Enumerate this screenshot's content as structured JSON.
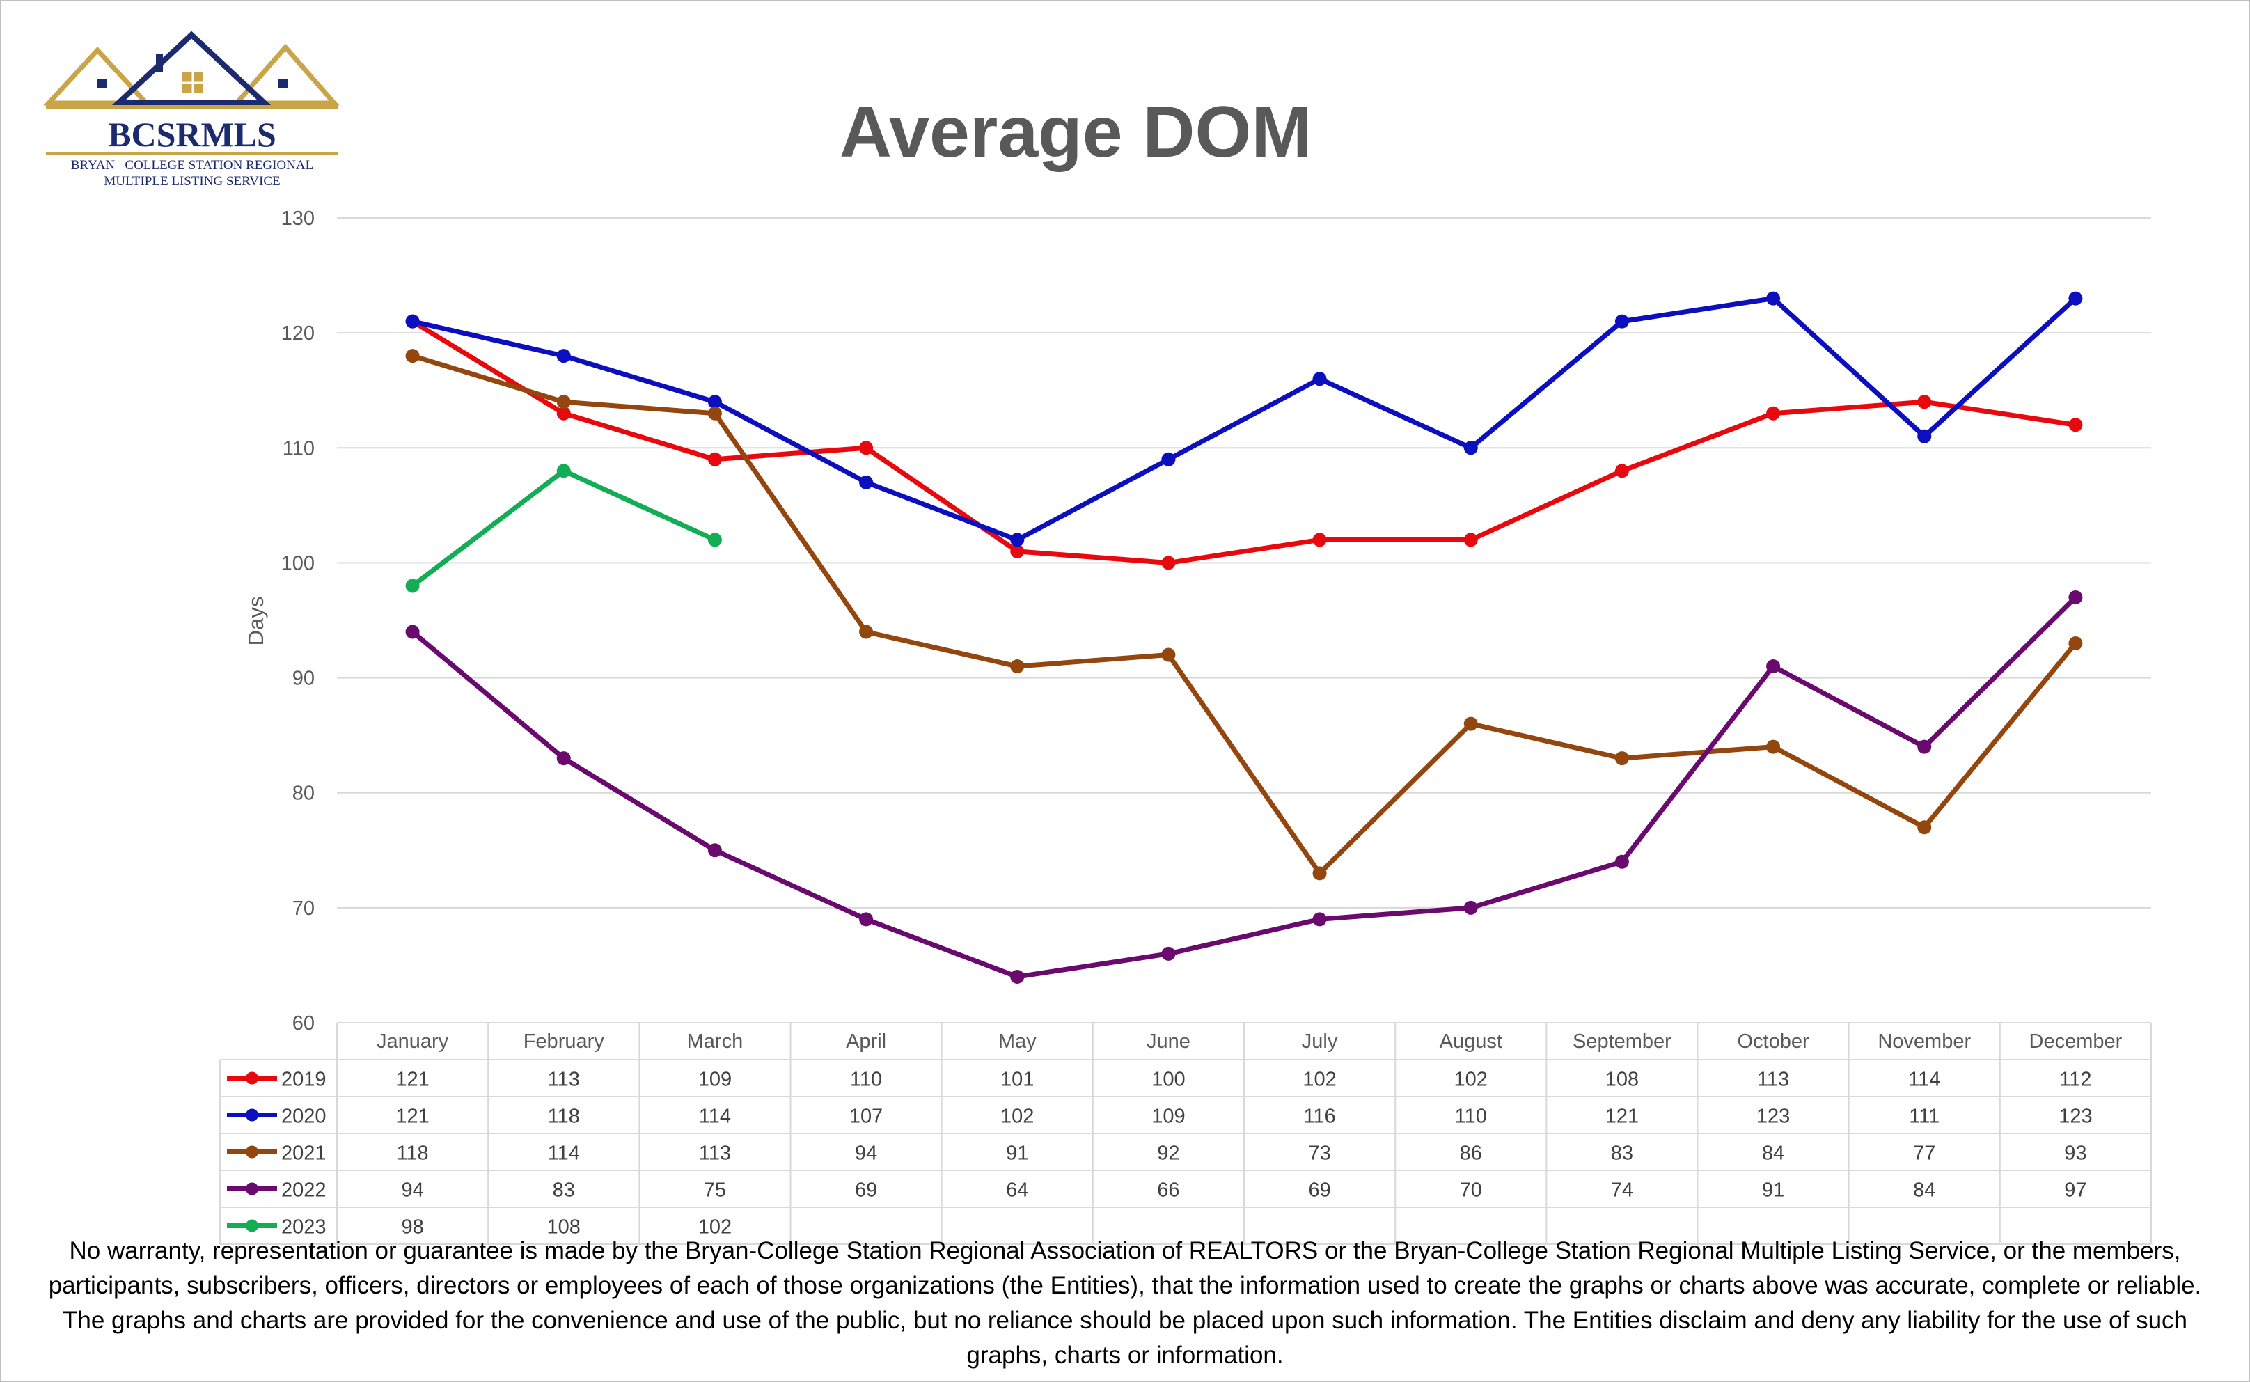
{
  "logo": {
    "name": "BCSRMLS",
    "line1": "BRYAN– COLLEGE STATION REGIONAL",
    "line2": "MULTIPLE LISTING SERVICE"
  },
  "chart_data": {
    "type": "line",
    "title": "Average DOM",
    "ylabel": "Days",
    "xlabel": "",
    "ylim": [
      60,
      130
    ],
    "yticks": [
      60,
      70,
      80,
      90,
      100,
      110,
      120,
      130
    ],
    "grid": true,
    "legend": "data-table",
    "categories": [
      "January",
      "February",
      "March",
      "April",
      "May",
      "June",
      "July",
      "August",
      "September",
      "October",
      "November",
      "December"
    ],
    "series": [
      {
        "name": "2019",
        "color": "#e8090f",
        "values": [
          121,
          113,
          109,
          110,
          101,
          100,
          102,
          102,
          108,
          113,
          114,
          112
        ]
      },
      {
        "name": "2020",
        "color": "#0b0fbe",
        "values": [
          121,
          118,
          114,
          107,
          102,
          109,
          116,
          110,
          121,
          123,
          111,
          123
        ]
      },
      {
        "name": "2021",
        "color": "#93460e",
        "values": [
          118,
          114,
          113,
          94,
          91,
          92,
          73,
          86,
          83,
          84,
          77,
          93
        ]
      },
      {
        "name": "2022",
        "color": "#6a0a6e",
        "values": [
          94,
          83,
          75,
          69,
          64,
          66,
          69,
          70,
          74,
          91,
          84,
          97
        ]
      },
      {
        "name": "2023",
        "color": "#13ad55",
        "values": [
          98,
          108,
          102,
          null,
          null,
          null,
          null,
          null,
          null,
          null,
          null,
          null
        ]
      }
    ]
  },
  "disclaimer": "No warranty, representation or guarantee is made by the Bryan-College Station Regional Association of REALTORS or the Bryan-College Station Regional Multiple Listing Service, or the members, participants, subscribers, officers, directors or employees of each of those organizations (the Entities), that the information used to create the graphs or charts above was accurate, complete or reliable.  The graphs and charts are provided for the convenience and use of the public, but no reliance should be placed upon such information.  The Entities disclaim and deny any liability for the use of such graphs, charts or information."
}
